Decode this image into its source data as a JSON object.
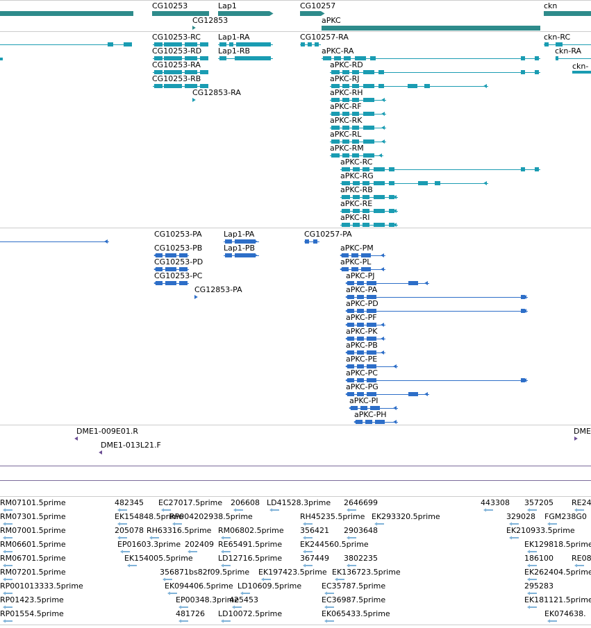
{
  "colors": {
    "gene": "#2e8b8b",
    "transcript": "#1a9cb2",
    "protein": "#2d6ec8",
    "clone": "#6a4c93",
    "est": "#7fb2d8",
    "divider": "#cccccc",
    "lane_line": "#7a6a9a"
  },
  "tracks": {
    "genes": {
      "labels": [
        "CG10253",
        "Lap1",
        "CG10257",
        "ckn",
        "CG12853",
        "aPKC"
      ]
    },
    "transcripts": {
      "labels": [
        "CG10253-RC",
        "Lap1-RA",
        "CG10257-RA",
        "ckn-RC",
        "CG10253-RD",
        "Lap1-RB",
        "aPKC-RA",
        "ckn-RA",
        "CG10253-RA",
        "aPKC-RD",
        "ckn-",
        "CG10253-RB",
        "aPKC-RJ",
        "CG12853-RA",
        "aPKC-RH",
        "aPKC-RF",
        "aPKC-RK",
        "aPKC-RL",
        "aPKC-RM",
        "aPKC-RC",
        "aPKC-RG",
        "aPKC-RB",
        "aPKC-RE",
        "aPKC-RI"
      ]
    },
    "proteins": {
      "labels": [
        "CG10253-PA",
        "Lap1-PA",
        "CG10257-PA",
        "CG10253-PB",
        "Lap1-PB",
        "aPKC-PM",
        "CG10253-PD",
        "aPKC-PL",
        "CG10253-PC",
        "aPKC-PJ",
        "CG12853-PA",
        "aPKC-PA",
        "aPKC-PD",
        "aPKC-PF",
        "aPKC-PK",
        "aPKC-PB",
        "aPKC-PE",
        "aPKC-PC",
        "aPKC-PG",
        "aPKC-PI",
        "aPKC-PH"
      ]
    },
    "clones": {
      "labels": [
        "DME1-009E01.R",
        "DME1-013L21.F",
        "DME"
      ]
    },
    "ests": {
      "labels": [
        "RM07101.5prime",
        "482345",
        "EC27017.5prime",
        "206608",
        "LD41528.3prime",
        "2646699",
        "443308",
        "357205",
        "RE24",
        "RM07301.5prime",
        "EK154848.5prime",
        "RP004202938.5prime",
        "RH45235.5prime",
        "EK293320.5prime",
        "329028",
        "FGM238G0",
        "RM07001.5prime",
        "205078",
        "RH63316.5prime",
        "RM06802.5prime",
        "356421",
        "2903648",
        "EK210933.5prime",
        "RM06601.5prime",
        "EP01603.3prime",
        "202409",
        "RE65491.5prime",
        "EK244560.5prime",
        "EK129818.5prime",
        "RM06701.5prime",
        "EK154005.5prime",
        "LD12716.5prime",
        "367449",
        "3802235",
        "186100",
        "RE08",
        "RM07201.5prime",
        "356871bs82f09.5prime",
        "EK197423.5prime",
        "EK136723.5prime",
        "EK262404.5prime",
        "RP001013333.5prime",
        "EK094406.5prime",
        "LD10609.5prime",
        "EC35787.5prime",
        "295283",
        "RP01423.5prime",
        "EP00348.3prime",
        "425453",
        "EC36987.5prime",
        "EK181121.5prime",
        "RP01554.5prime",
        "481726",
        "LD10072.5prime",
        "EK065433.5prime",
        "EK074638."
      ]
    }
  }
}
